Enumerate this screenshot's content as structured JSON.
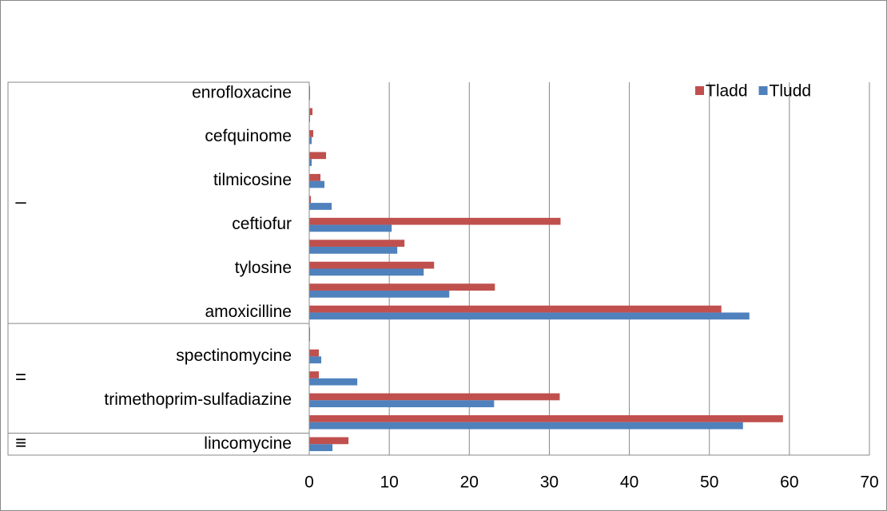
{
  "chart_data": {
    "type": "bar",
    "orientation": "horizontal",
    "category_groups": [
      {
        "label": "–",
        "categories": [
          "enrofloxacine",
          null,
          "cefquinome",
          null,
          "tilmicosine",
          null,
          "ceftiofur",
          null,
          "tylosine",
          null,
          "amoxicilline"
        ]
      },
      {
        "label": "=",
        "categories": [
          null,
          "spectinomycine",
          null,
          "trimethoprim-sulfadiazine",
          null
        ]
      },
      {
        "label": "≡",
        "categories": [
          "lincomycine"
        ]
      }
    ],
    "series": [
      {
        "name": "Tladd",
        "color": "#c0504d",
        "values": [
          0.1,
          0.4,
          0.5,
          2.1,
          1.4,
          0.2,
          31.4,
          11.9,
          15.6,
          23.2,
          51.5,
          0.1,
          1.2,
          1.2,
          31.3,
          59.2,
          4.9
        ]
      },
      {
        "name": "Tludd",
        "color": "#4f81bd",
        "values": [
          0.1,
          0.1,
          0.3,
          0.3,
          1.9,
          2.8,
          10.3,
          11.0,
          14.3,
          17.5,
          55.0,
          0.1,
          1.5,
          6.0,
          23.1,
          54.2,
          2.9
        ]
      }
    ],
    "xlim": [
      0,
      70
    ],
    "xticks": [
      0,
      10,
      20,
      30,
      40,
      50,
      60,
      70
    ],
    "grid": true,
    "legend": "top-right"
  }
}
